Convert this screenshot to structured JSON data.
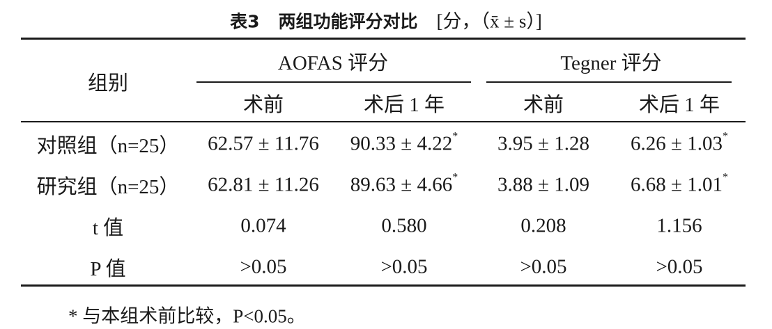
{
  "header": {
    "label": "表3",
    "title": "两组功能评分对比",
    "unit": "[分，（x̄ ± s）]"
  },
  "table": {
    "group_header": "组别",
    "column_groups": [
      {
        "title": "AOFAS 评分",
        "columns": [
          "术前",
          "术后 1 年"
        ]
      },
      {
        "title": "Tegner 评分",
        "columns": [
          "术前",
          "术后 1 年"
        ]
      }
    ],
    "rows": [
      {
        "label": "对照组（n=25）",
        "cells": [
          {
            "text": "62.57 ± 11.76"
          },
          {
            "text": "90.33 ± 4.22",
            "mark": "*"
          },
          {
            "text": "3.95 ± 1.28"
          },
          {
            "text": "6.26 ± 1.03",
            "mark": "*"
          }
        ]
      },
      {
        "label": "研究组（n=25）",
        "cells": [
          {
            "text": "62.81 ± 11.26"
          },
          {
            "text": "89.63 ± 4.66",
            "mark": "*"
          },
          {
            "text": "3.88 ± 1.09"
          },
          {
            "text": "6.68 ± 1.01",
            "mark": "*"
          }
        ]
      },
      {
        "label": "t 值",
        "cells": [
          {
            "text": "0.074"
          },
          {
            "text": "0.580"
          },
          {
            "text": "0.208"
          },
          {
            "text": "1.156"
          }
        ]
      },
      {
        "label": "P 值",
        "cells": [
          {
            "text": ">0.05"
          },
          {
            "text": ">0.05"
          },
          {
            "text": ">0.05"
          },
          {
            "text": ">0.05"
          }
        ]
      }
    ]
  },
  "footnote": "* 与本组术前比较，P<0.05。"
}
